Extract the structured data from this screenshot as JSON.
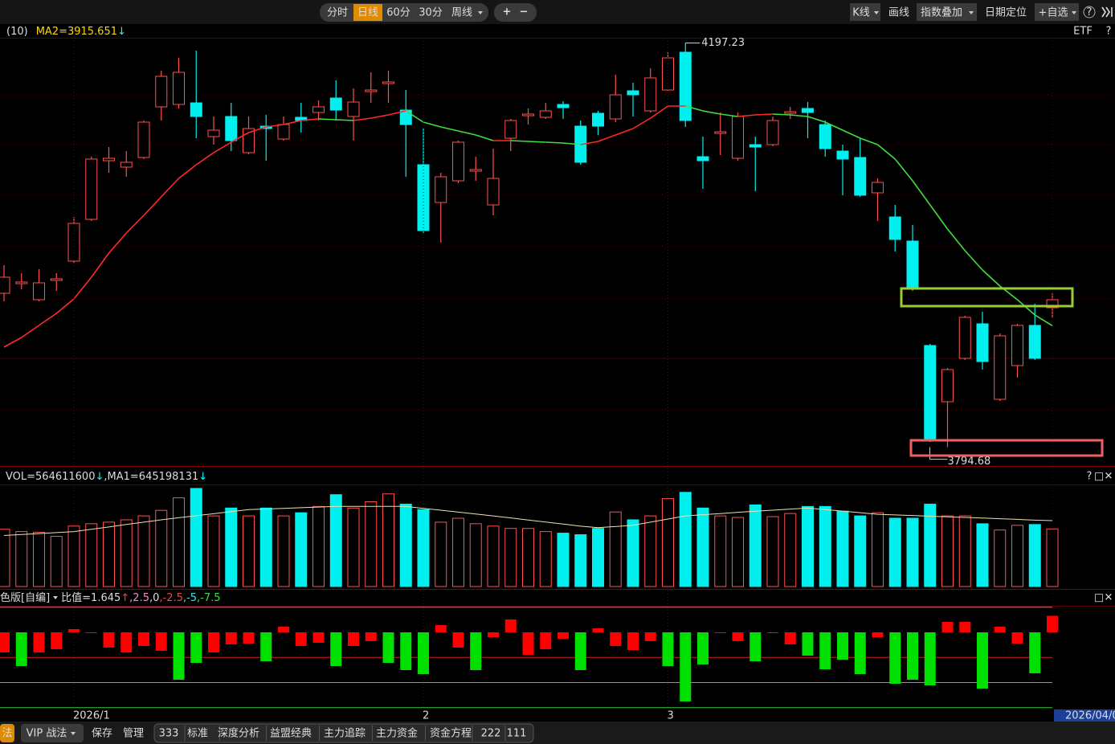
{
  "toolbar": {
    "periods": [
      "分时",
      "日线",
      "60分",
      "30分",
      "周线"
    ],
    "active_period": 1,
    "zoom": [
      "+",
      "−"
    ],
    "tools": [
      "K线",
      "画线",
      "指数叠加",
      "日期定位",
      "+自选"
    ],
    "help": "?"
  },
  "chart_data": [
    {
      "type": "candlestick",
      "legend": [
        {
          "text": "(10)",
          "color": "#dddddd"
        },
        {
          "text": "MA2=3915.651",
          "color": "#ffd700"
        },
        {
          "text": "↓",
          "color": "#00ffff"
        }
      ],
      "corner_label": "ETF",
      "help": "?",
      "categories": [
        null,
        null,
        null,
        null,
        "2026/1",
        null,
        null,
        null,
        null,
        null,
        null,
        null,
        null,
        null,
        null,
        null,
        null,
        null,
        null,
        null,
        null,
        null,
        null,
        null,
        "2",
        null,
        null,
        null,
        null,
        null,
        null,
        null,
        null,
        null,
        null,
        null,
        null,
        null,
        "3",
        null,
        null,
        null,
        null,
        null,
        null,
        null,
        null,
        null,
        null,
        null,
        null,
        null,
        null,
        null,
        null,
        null,
        null,
        null,
        null,
        null,
        "2026/04/0"
      ],
      "open": [
        3948,
        3957.6,
        3941.6,
        3960.8,
        3980,
        4021.6,
        4080,
        4073.6,
        4083.2,
        4133.6,
        4136,
        4137.6,
        4104,
        4124,
        4088,
        4114.4,
        4101.6,
        4123.2,
        4128,
        4142.4,
        4124,
        4148.8,
        4156.8,
        4130.4,
        4076,
        4038.4,
        4060,
        4069.6,
        4036,
        4102.4,
        4124.8,
        4123.2,
        4136,
        4114.4,
        4127.2,
        4121.6,
        4149.6,
        4129.6,
        4150.4,
        4188,
        4084,
        4107.2,
        4082.4,
        4096,
        4096,
        4127.2,
        4132,
        4116,
        4089.6,
        4083.2,
        4048,
        4024,
        4000,
        3896,
        3840,
        3883.2,
        3917.6,
        3842.4,
        3876,
        3916,
        3933.6
      ],
      "high": [
        3976,
        3968,
        3972,
        3968,
        4024,
        4084,
        4093.6,
        4089.6,
        4120,
        4169.6,
        4182.4,
        4189.6,
        4124,
        4137.6,
        4124,
        4125.6,
        4124,
        4137.6,
        4140,
        4160,
        4152,
        4168,
        4169.6,
        4150.4,
        4112,
        4068,
        4100,
        4084,
        4092,
        4121.6,
        4132,
        4137.6,
        4139.2,
        4120,
        4129.6,
        4165.6,
        4157.6,
        4172,
        4188,
        4197.23,
        4104,
        4128,
        4128,
        4104,
        4124,
        4133.6,
        4138.4,
        4120,
        4096,
        4102.4,
        4062.4,
        4036,
        4016,
        3897.6,
        3873.6,
        3925.6,
        3929.6,
        3908,
        3917.6,
        3937.6,
        3948
      ],
      "low": [
        3940,
        3952,
        3940,
        3950.4,
        3977.6,
        4020,
        4068,
        4064,
        4081.6,
        4120,
        4132,
        4102.4,
        4096,
        4089.6,
        4086.4,
        4080,
        4100,
        4108,
        4120,
        4120,
        4100,
        4137.6,
        4137.6,
        4064,
        4008,
        3998.4,
        4057.6,
        4060,
        4025.6,
        4089.6,
        4116,
        4121.6,
        4121.6,
        4076,
        4105.6,
        4118.4,
        4124,
        4128,
        4149.6,
        4113.6,
        4052,
        4085.6,
        4080,
        4049.6,
        4094.4,
        4121.6,
        4102.4,
        4084,
        4045.6,
        4044,
        4020,
        3989.6,
        3950.4,
        3800,
        3794.68,
        3881.6,
        3872,
        3840.8,
        3864,
        3881.6,
        3923.2
      ],
      "close": [
        3964,
        3959.2,
        3958.4,
        3962.4,
        4017.6,
        4081.6,
        4082.4,
        4078.4,
        4118.4,
        4164,
        4168,
        4124,
        4110.4,
        4100,
        4112,
        4112,
        4116,
        4120,
        4133.6,
        4130.4,
        4138.4,
        4150.4,
        4158.4,
        4116,
        4010.4,
        4064,
        4098.4,
        4071.2,
        4062.4,
        4120,
        4126.4,
        4129.6,
        4132.8,
        4078.4,
        4114.4,
        4145.6,
        4145.6,
        4162.4,
        4182.4,
        4120,
        4080,
        4108.8,
        4124,
        4093.6,
        4120,
        4128.8,
        4128,
        4092,
        4081.6,
        4045.6,
        4058.4,
        4001.6,
        3952,
        3801.6,
        3872,
        3924,
        3880,
        3905.6,
        3916,
        3883.2,
        3941.6
      ],
      "ma": {
        "values": [
          3894.4,
          3904,
          3916,
          3928,
          3942.4,
          3964,
          3988,
          4008,
          4025.6,
          4044,
          4062.4,
          4076,
          4088,
          4098.4,
          4108,
          4113.6,
          4116,
          4120,
          4121.6,
          4120.8,
          4120,
          4122.4,
          4125.6,
          4129.6,
          4118.4,
          4113.6,
          4109.6,
          4105.6,
          4100,
          4100,
          4099.2,
          4098.4,
          4097.6,
          4096,
          4099.2,
          4105.6,
          4112,
          4122.4,
          4134.4,
          4134.4,
          4129.6,
          4126.4,
          4124,
          4125.6,
          4126.4,
          4125.6,
          4124,
          4118.4,
          4110.4,
          4102.4,
          4096,
          4081.6,
          4060,
          4036,
          4012,
          3990.4,
          3971.2,
          3955.2,
          3941.6,
          3926.4,
          3915.651
        ],
        "up_color": "#ff2a2a",
        "down_color": "#3ee03e"
      },
      "up_color": "#ff5050",
      "down_color": "#00f0f0",
      "ylim": [
        3776,
        4202.4
      ]
    },
    {
      "type": "volume",
      "legend": [
        {
          "text": "VOL=564611600",
          "color": "#dddddd"
        },
        {
          "text": "↓",
          "color": "#00ffff"
        },
        {
          "text": ",MA1=645198131",
          "color": "#dddddd"
        },
        {
          "text": "↓",
          "color": "#00ffff"
        }
      ],
      "icons": [
        "?",
        "□",
        "✕"
      ],
      "values": [
        561500000,
        538500000,
        530800000,
        492300000,
        592300000,
        615400000,
        630800000,
        653800000,
        692300000,
        746200000,
        869200000,
        961500000,
        692300000,
        769200000,
        692300000,
        769200000,
        692300000,
        723100000,
        784600000,
        900000000,
        769200000,
        830800000,
        907700000,
        807700000,
        753800000,
        630800000,
        669200000,
        615400000,
        592300000,
        569200000,
        569200000,
        538500000,
        523100000,
        507700000,
        569200000,
        730800000,
        653800000,
        692300000,
        861500000,
        923100000,
        769200000,
        692300000,
        676900000,
        800000000,
        684600000,
        715400000,
        784600000,
        784600000,
        738500000,
        692300000,
        723100000,
        669200000,
        669200000,
        807700000,
        692300000,
        692300000,
        615400000,
        553800000,
        600000000,
        607700000,
        564611600
      ],
      "ma_values": [
        500000000,
        510000000,
        519000000,
        529000000,
        538000000,
        561000000,
        584000000,
        608000000,
        631000000,
        654000000,
        674000000,
        694000000,
        714000000,
        734000000,
        754000000,
        760000000,
        766000000,
        773000000,
        779000000,
        785000000,
        785000000,
        785000000,
        785000000,
        785000000,
        766000000,
        748000000,
        729000000,
        711000000,
        692000000,
        672000000,
        652000000,
        632000000,
        612000000,
        592000000,
        577000000,
        588000000,
        600000000,
        631000000,
        661000000,
        692000000,
        704000000,
        715000000,
        727000000,
        738000000,
        748000000,
        759000000,
        769000000,
        754000000,
        739000000,
        723000000,
        708000000,
        702000000,
        696000000,
        689000000,
        683000000,
        677000000,
        671000000,
        664000000,
        658000000,
        651000000,
        645198131
      ],
      "ma_color": "#e8e4b0",
      "ylim": [
        0,
        1000000000
      ]
    },
    {
      "type": "bar",
      "legend": [
        {
          "text": "色版[自编]",
          "color": "#dddddd"
        },
        {
          "text": "比值=1.645",
          "color": "#dddddd"
        },
        {
          "text": "↑",
          "color": "#ff4040"
        },
        {
          "text": ",2.5",
          "color": "#ff88cc"
        },
        {
          "text": ",0",
          "color": "#dddddd"
        },
        {
          "text": ",-2.5",
          "color": "#ff4040"
        },
        {
          "text": ",-5",
          "color": "#40e0e0"
        },
        {
          "text": ",-7.5",
          "color": "#40e040"
        }
      ],
      "icons": [
        "□",
        "✕"
      ],
      "values": [
        -2,
        -3.36,
        -2,
        -1.68,
        0.32,
        -0.08,
        -1.52,
        -2,
        -1.36,
        -1.84,
        -4.72,
        -3.04,
        -2,
        -1.2,
        -1.12,
        -2.88,
        0.56,
        -1.36,
        -1.04,
        -3.36,
        -1.36,
        -0.88,
        -3.04,
        -3.76,
        -4.16,
        0.72,
        -1.52,
        -3.76,
        -0.48,
        1.28,
        -2.24,
        -1.68,
        -0.64,
        -3.76,
        0.4,
        -1.36,
        -1.76,
        -0.88,
        -3.36,
        -6.88,
        -3.2,
        -0.08,
        -0.88,
        -2.88,
        -0.08,
        -1.2,
        -2.32,
        -3.68,
        -2.72,
        -4.16,
        -0.48,
        -5.12,
        -4.72,
        -5.28,
        1.04,
        1.04,
        -5.6,
        0.56,
        -1.12,
        -4.08,
        1.645
      ],
      "colors": [
        "#ff0000",
        "#00e000",
        "#ff0000",
        "#ff0000",
        "#ff0000",
        "#ff0000",
        "#ff0000",
        "#ff0000",
        "#ff0000",
        "#ff0000",
        "#00e000",
        "#00e000",
        "#ff0000",
        "#ff0000",
        "#ff0000",
        "#00e000",
        "#ff0000",
        "#ff0000",
        "#ff0000",
        "#00e000",
        "#ff0000",
        "#ff0000",
        "#00e000",
        "#00e000",
        "#00e000",
        "#ff0000",
        "#ff0000",
        "#00e000",
        "#ff0000",
        "#ff0000",
        "#ff0000",
        "#ff0000",
        "#ff0000",
        "#00e000",
        "#ff0000",
        "#ff0000",
        "#ff0000",
        "#ff0000",
        "#00e000",
        "#00e000",
        "#00e000",
        "#ff0000",
        "#ff0000",
        "#00e000",
        "#ff0000",
        "#ff0000",
        "#00e000",
        "#00e000",
        "#00e000",
        "#00e000",
        "#ff0000",
        "#00e000",
        "#00e000",
        "#00e000",
        "#ff0000",
        "#ff0000",
        "#00e000",
        "#ff0000",
        "#ff0000",
        "#00e000",
        "#ff0000"
      ],
      "ref_lines": [
        {
          "value": 2.5,
          "color": "#d08060"
        },
        {
          "value": -2.5,
          "color": "#d02020"
        },
        {
          "value": -5,
          "color": "#30c0c0"
        },
        {
          "value": -7.5,
          "color": "#30d030"
        }
      ],
      "ylim": [
        -7.6,
        2.56
      ]
    }
  ],
  "tabs": [
    "法",
    "VIP 战法",
    "保存",
    "管理",
    "333",
    "标准",
    "深度分析",
    "益盟经典",
    "主力追踪",
    "主力资金",
    "资金方程",
    "222",
    "111"
  ]
}
